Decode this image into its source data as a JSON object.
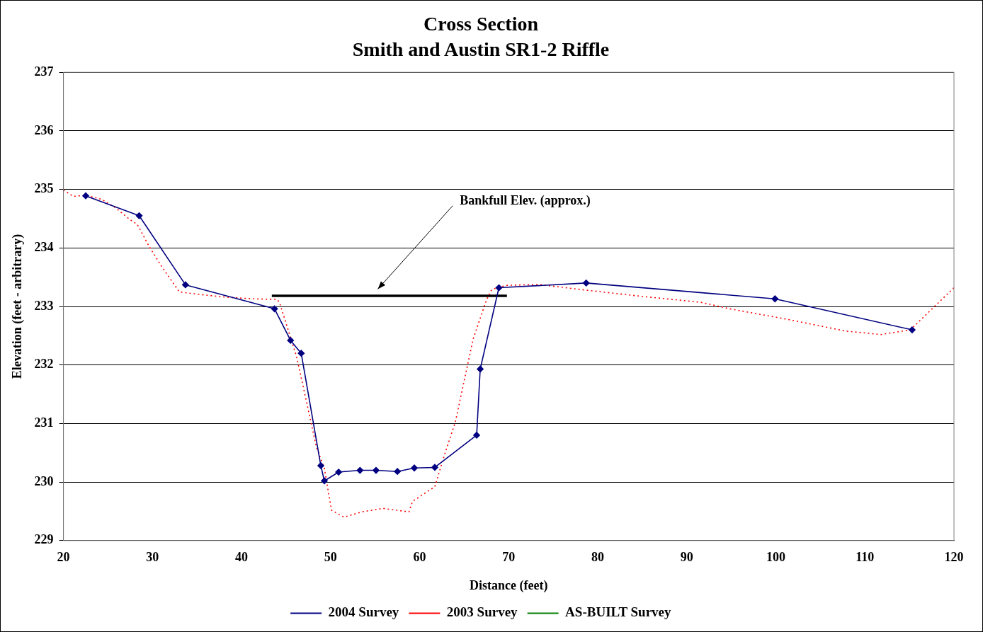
{
  "chart_data": {
    "type": "line",
    "title": "Cross Section",
    "subtitle": "Smith and Austin SR1-2 Riffle",
    "xlabel": "Distance (feet)",
    "ylabel": "Elevation (feet - arbitrary)",
    "xlim": [
      20,
      120
    ],
    "xticks": [
      20,
      30,
      40,
      50,
      60,
      70,
      80,
      90,
      100,
      110,
      120
    ],
    "ylim": [
      229,
      237
    ],
    "yticks": [
      229,
      230,
      231,
      232,
      233,
      234,
      235,
      236,
      237
    ],
    "grid": "y",
    "legend": "bottom",
    "series": [
      {
        "name": "2004 Survey",
        "color": "#000080",
        "marker": "diamond",
        "line_style": "solid",
        "x": [
          22.5,
          28.5,
          33.7,
          43.7,
          45.5,
          46.7,
          48.9,
          49.3,
          50.9,
          53.3,
          55.1,
          57.5,
          59.4,
          61.7,
          66.4,
          66.8,
          68.9,
          78.7,
          99.9,
          115.3
        ],
        "values": [
          234.89,
          234.55,
          233.37,
          232.96,
          232.42,
          232.2,
          230.28,
          230.02,
          230.17,
          230.2,
          230.2,
          230.18,
          230.24,
          230.25,
          230.8,
          231.93,
          233.32,
          233.4,
          233.13,
          232.6
        ]
      },
      {
        "name": "2003 Survey",
        "color": "#ff0000",
        "marker": "none",
        "line_style": "dotted",
        "x": [
          20,
          21.1,
          22.5,
          24.3,
          25.9,
          27.5,
          28.3,
          29.6,
          31.0,
          33.0,
          35.0,
          38.1,
          41.3,
          44.0,
          44.3,
          46.2,
          48.4,
          49.3,
          50.1,
          51.5,
          53.5,
          55.9,
          58.8,
          59.2,
          61.7,
          62.8,
          64.0,
          66.0,
          67.5,
          68.1,
          69.7,
          72.1,
          73.7,
          78.6,
          85.1,
          91.6,
          94.8,
          101.3,
          107.8,
          111.8,
          115.1,
          120.0
        ],
        "values": [
          234.99,
          234.88,
          234.9,
          234.83,
          234.68,
          234.48,
          234.4,
          234.03,
          233.69,
          233.25,
          233.21,
          233.16,
          233.13,
          233.12,
          233.05,
          232.13,
          230.6,
          230.23,
          229.52,
          229.4,
          229.49,
          229.55,
          229.49,
          229.67,
          229.92,
          230.47,
          231.02,
          232.44,
          233.11,
          233.29,
          233.36,
          233.37,
          233.37,
          233.28,
          233.17,
          233.07,
          232.96,
          232.78,
          232.58,
          232.52,
          232.6,
          233.32
        ]
      },
      {
        "name": "AS-BUILT Survey",
        "color": "#008000",
        "marker": "none",
        "line_style": "dashed"
      },
      {
        "color": "#000000",
        "marker": "none",
        "line_style": "solid",
        "x": [
          43.4,
          69.8
        ],
        "values": [
          233.18,
          233.18
        ]
      }
    ],
    "annotations": [
      "Bankfull Elev. (approx.)"
    ]
  }
}
